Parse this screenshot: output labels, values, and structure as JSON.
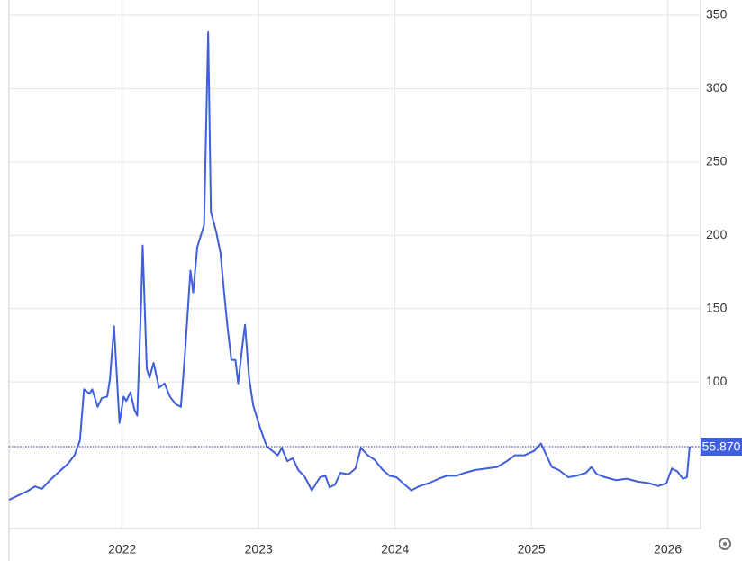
{
  "chart_data": {
    "type": "line",
    "x": [
      2021.17,
      2021.24,
      2021.31,
      2021.36,
      2021.41,
      2021.47,
      2021.54,
      2021.6,
      2021.65,
      2021.69,
      2021.72,
      2021.76,
      2021.78,
      2021.82,
      2021.85,
      2021.89,
      2021.91,
      2021.94,
      2021.98,
      2022.01,
      2022.03,
      2022.06,
      2022.09,
      2022.11,
      2022.14,
      2022.15,
      2022.18,
      2022.2,
      2022.23,
      2022.27,
      2022.31,
      2022.35,
      2022.39,
      2022.43,
      2022.46,
      2022.5,
      2022.52,
      2022.55,
      2022.57,
      2022.6,
      2022.63,
      2022.65,
      2022.69,
      2022.72,
      2022.75,
      2022.77,
      2022.8,
      2022.83,
      2022.85,
      2022.88,
      2022.9,
      2022.93,
      2022.96,
      2022.98,
      2023.01,
      2023.04,
      2023.06,
      2023.1,
      2023.14,
      2023.17,
      2023.21,
      2023.25,
      2023.29,
      2023.34,
      2023.39,
      2023.45,
      2023.49,
      2023.52,
      2023.56,
      2023.6,
      2023.66,
      2023.71,
      2023.75,
      2023.8,
      2023.85,
      2023.91,
      2023.96,
      2024.01,
      2024.07,
      2024.12,
      2024.18,
      2024.25,
      2024.32,
      2024.38,
      2024.45,
      2024.51,
      2024.59,
      2024.67,
      2024.75,
      2024.82,
      2024.88,
      2024.95,
      2025.02,
      2025.07,
      2025.11,
      2025.15,
      2025.2,
      2025.27,
      2025.33,
      2025.4,
      2025.44,
      2025.48,
      2025.54,
      2025.62,
      2025.7,
      2025.78,
      2025.86,
      2025.93,
      2025.99,
      2026.03,
      2026.07,
      2026.11,
      2026.14,
      2026.16
    ],
    "series": [
      {
        "color": "#3f5fdc",
        "values": [
          19.6,
          22.7,
          25.8,
          28.8,
          27,
          33,
          39,
          44,
          50,
          60,
          95,
          92,
          95,
          83,
          89,
          90,
          102,
          138,
          72,
          90,
          87,
          93,
          81,
          77,
          158,
          193,
          109,
          103,
          113,
          96,
          99,
          90,
          85,
          83,
          119,
          176,
          161,
          192,
          198,
          207,
          339,
          216,
          202,
          188,
          158,
          139,
          115,
          115,
          99,
          124,
          139,
          103,
          84,
          78,
          69,
          61,
          56,
          53,
          50,
          55,
          46,
          48,
          40,
          35,
          26,
          35,
          36,
          28,
          30,
          38,
          37,
          41,
          55,
          50,
          47,
          40,
          36,
          35,
          30,
          26,
          29,
          31,
          34,
          36,
          36,
          38,
          40,
          41,
          42,
          46,
          50,
          50,
          53,
          58,
          50,
          42,
          40,
          35,
          36,
          38,
          42,
          37,
          35,
          33,
          34,
          32,
          31,
          29,
          31,
          41,
          39,
          34,
          35,
          55.87
        ]
      }
    ],
    "last_value": 55.87,
    "last_value_label": "55.870",
    "last_value_color": "#3f5fdc",
    "xlim": [
      2021.17,
      2026.24
    ],
    "xticks": [
      2022,
      2023,
      2024,
      2025,
      2026
    ],
    "ylim": [
      0,
      350
    ],
    "yticks": [
      100,
      150,
      200,
      250,
      300,
      350
    ],
    "grid": true
  }
}
